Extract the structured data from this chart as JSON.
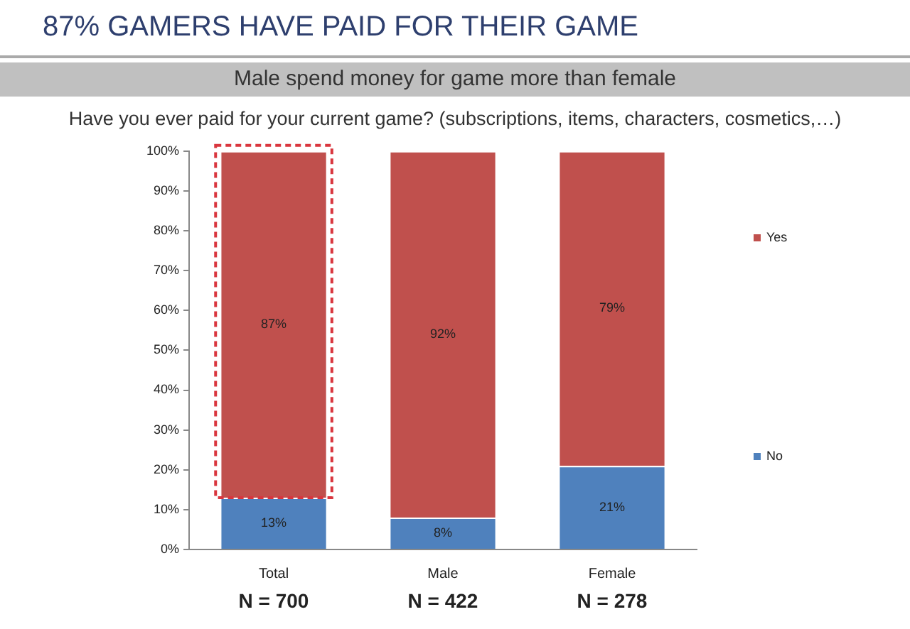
{
  "chart_data": {
    "type": "bar",
    "title": "87% GAMERS HAVE PAID FOR THEIR GAME",
    "subtitle": "Male spend money for game more than female",
    "annotations": [
      "Have you ever paid for your current game? (subscriptions, items, characters, cosmetics,…)",
      "N = 700",
      "N = 422",
      "N = 278"
    ],
    "categories": [
      "Total",
      "Male",
      "Female"
    ],
    "series": [
      {
        "name": "No",
        "color": "#4f81bd",
        "values": [
          13,
          8,
          21
        ],
        "value_labels": [
          "13%",
          "8%",
          "21%"
        ]
      },
      {
        "name": "Yes",
        "color": "#c0504d",
        "values": [
          87,
          92,
          79
        ],
        "value_labels": [
          "87%",
          "92%",
          "79%"
        ]
      }
    ],
    "stacked": true,
    "ylim": [
      0,
      100
    ],
    "yticks": [
      {
        "value": 0,
        "label": "0%"
      },
      {
        "value": 10,
        "label": "10%"
      },
      {
        "value": 20,
        "label": "20%"
      },
      {
        "value": 30,
        "label": "30%"
      },
      {
        "value": 40,
        "label": "40%"
      },
      {
        "value": 50,
        "label": "50%"
      },
      {
        "value": 60,
        "label": "60%"
      },
      {
        "value": 70,
        "label": "70%"
      },
      {
        "value": 80,
        "label": "80%"
      },
      {
        "value": 90,
        "label": "90%"
      },
      {
        "value": 100,
        "label": "100%"
      }
    ],
    "grid": false,
    "legend": "right"
  }
}
